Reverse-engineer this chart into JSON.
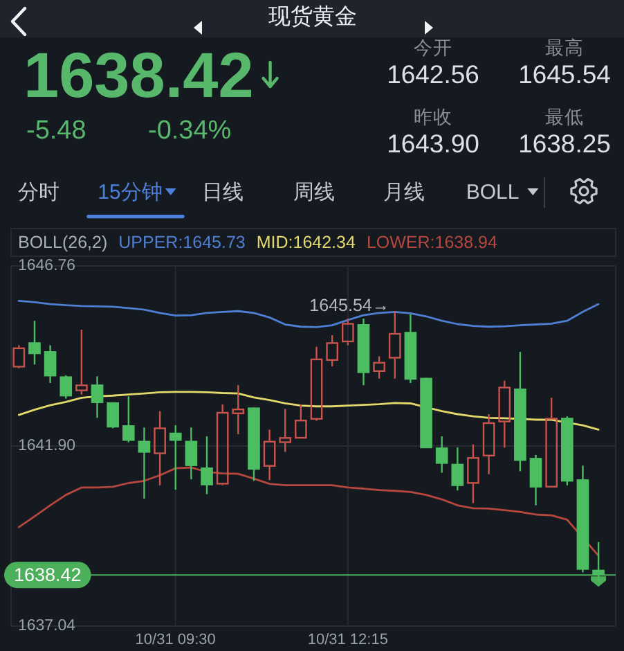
{
  "chart_data": [
    {
      "type": "other",
      "title": "现货黄金",
      "annotations": [
        "1638.42",
        "-5.48",
        "-0.34%",
        "今开",
        "1642.56",
        "最高",
        "1645.54",
        "昨收",
        "1643.90",
        "最低",
        "1638.25",
        "分时",
        "15分钟",
        "日线",
        "周线",
        "月线",
        "BOLL"
      ]
    },
    {
      "type": "candlestick",
      "categories": [
        null,
        null,
        null,
        null,
        null,
        null,
        null,
        null,
        null,
        null,
        "10/31 09:30",
        null,
        null,
        null,
        null,
        null,
        null,
        null,
        null,
        null,
        null,
        "10/31 12:15",
        null,
        null,
        null,
        null,
        null,
        null,
        null,
        null,
        null,
        null,
        null,
        null,
        null,
        null,
        null,
        null
      ],
      "ohlc": [
        [
          1644.02,
          1644.62,
          1644.0,
          1644.56
        ],
        [
          1644.7,
          1645.28,
          1644.1,
          1644.38
        ],
        [
          1644.46,
          1644.62,
          1643.6,
          1643.78
        ],
        [
          1643.78,
          1643.81,
          1643.18,
          1643.24
        ],
        [
          1643.38,
          1645.04,
          1643.29,
          1643.56
        ],
        [
          1643.56,
          1643.78,
          1642.66,
          1643.06
        ],
        [
          1643.08,
          1643.08,
          1642.38,
          1642.4
        ],
        [
          1642.46,
          1643.24,
          1642.0,
          1642.04
        ],
        [
          1642.04,
          1642.4,
          1640.48,
          1641.72
        ],
        [
          1641.68,
          1642.84,
          1640.84,
          1642.4
        ],
        [
          1642.26,
          1642.46,
          1640.72,
          1642.04
        ],
        [
          1642.04,
          1642.4,
          1641.0,
          1641.36
        ],
        [
          1641.32,
          1642.16,
          1640.6,
          1640.84
        ],
        [
          1640.86,
          1643.02,
          1640.84,
          1642.82
        ],
        [
          1642.76,
          1643.54,
          1642.22,
          1642.91
        ],
        [
          1642.94,
          1642.94,
          1640.96,
          1641.26
        ],
        [
          1641.34,
          1642.34,
          1640.98,
          1642.04
        ],
        [
          1641.98,
          1642.9,
          1641.74,
          1642.14
        ],
        [
          1642.1,
          1643.02,
          1642.1,
          1642.61
        ],
        [
          1642.61,
          1644.58,
          1642.58,
          1644.26
        ],
        [
          1644.2,
          1644.89,
          1644.05,
          1644.7
        ],
        [
          1644.7,
          1645.34,
          1644.62,
          1645.22
        ],
        [
          1645.19,
          1645.34,
          1643.54,
          1643.87
        ],
        [
          1643.9,
          1644.32,
          1643.72,
          1644.17
        ],
        [
          1644.26,
          1645.54,
          1643.72,
          1644.95
        ],
        [
          1644.98,
          1645.46,
          1643.6,
          1643.69
        ],
        [
          1643.74,
          1643.74,
          1641.84,
          1641.84
        ],
        [
          1641.86,
          1642.16,
          1641.18,
          1641.42
        ],
        [
          1641.42,
          1641.86,
          1640.7,
          1640.82
        ],
        [
          1640.88,
          1641.94,
          1640.36,
          1641.6
        ],
        [
          1641.62,
          1642.76,
          1641.14,
          1642.54
        ],
        [
          1642.54,
          1643.66,
          1641.86,
          1643.5
        ],
        [
          1643.45,
          1644.44,
          1641.22,
          1641.5
        ],
        [
          1641.58,
          1641.66,
          1640.3,
          1640.78
        ],
        [
          1640.78,
          1643.2,
          1640.78,
          1642.66
        ],
        [
          1642.66,
          1642.7,
          1640.84,
          1640.94
        ],
        [
          1641.0,
          1641.37,
          1638.49,
          1638.56
        ],
        [
          1638.56,
          1639.31,
          1638.25,
          1638.42
        ]
      ],
      "colors": [
        "#c9544c",
        "#4dbd62",
        "#4dbd62",
        "#4dbd62",
        "#c9544c",
        "#4dbd62",
        "#4dbd62",
        "#4dbd62",
        "#4dbd62",
        "#c9544c",
        "#4dbd62",
        "#4dbd62",
        "#4dbd62",
        "#c9544c",
        "#c9544c",
        "#4dbd62",
        "#c9544c",
        "#c9544c",
        "#c9544c",
        "#c9544c",
        "#c9544c",
        "#c9544c",
        "#4dbd62",
        "#c9544c",
        "#c9544c",
        "#4dbd62",
        "#4dbd62",
        "#4dbd62",
        "#4dbd62",
        "#c9544c",
        "#c9544c",
        "#c9544c",
        "#4dbd62",
        "#4dbd62",
        "#c9544c",
        "#4dbd62",
        "#4dbd62",
        "#4dbd62"
      ],
      "series": [
        {
          "name": "UPPER:1645.73",
          "type": "line",
          "color": "#4f7fd3",
          "values": [
            1645.82,
            1645.78,
            1645.73,
            1645.7,
            1645.68,
            1645.67,
            1645.66,
            1645.62,
            1645.58,
            1645.49,
            1645.42,
            1645.43,
            1645.49,
            1645.52,
            1645.54,
            1645.49,
            1645.37,
            1645.18,
            1645.12,
            1645.11,
            1645.16,
            1645.3,
            1645.43,
            1645.49,
            1645.52,
            1645.48,
            1645.4,
            1645.28,
            1645.19,
            1645.14,
            1645.12,
            1645.13,
            1645.16,
            1645.18,
            1645.2,
            1645.28,
            1645.52,
            1645.73
          ]
        },
        {
          "name": "MID:1642.34",
          "type": "line",
          "color": "#e3d96a",
          "values": [
            1642.74,
            1642.88,
            1643.0,
            1643.09,
            1643.2,
            1643.24,
            1643.26,
            1643.29,
            1643.32,
            1643.35,
            1643.36,
            1643.36,
            1643.35,
            1643.33,
            1643.32,
            1643.21,
            1643.14,
            1643.05,
            1642.99,
            1642.97,
            1642.97,
            1642.99,
            1643.01,
            1643.03,
            1643.06,
            1643.05,
            null,
            1642.84,
            1642.76,
            1642.7,
            1642.66,
            1642.65,
            null,
            1642.61,
            1642.61,
            null,
            1642.46,
            1642.34
          ]
        },
        {
          "name": "LOWER:1638.94",
          "type": "line",
          "color": "#b5473f",
          "values": [
            1639.71,
            1640.0,
            1640.3,
            1640.58,
            1640.78,
            1640.78,
            1640.8,
            1640.9,
            1640.96,
            1641.11,
            1641.3,
            1641.32,
            1641.2,
            1641.16,
            1641.15,
            1641.02,
            1640.88,
            1640.84,
            1640.84,
            1640.84,
            1640.84,
            1640.78,
            1640.75,
            1640.71,
            1640.69,
            1640.66,
            1640.58,
            1640.46,
            1640.3,
            1640.22,
            1640.21,
            1640.17,
            1640.12,
            1640.05,
            1640.03,
            1639.91,
            null,
            1638.94
          ]
        }
      ],
      "legend_title": "BOLL(26,2)",
      "legend": "top left",
      "ylim": [
        1637.04,
        1646.76
      ],
      "yticks": [
        1646.76,
        {
          "value": 1641.9,
          "label": "1641.90"
        },
        1637.04
      ],
      "grid": true,
      "ref_lines": [
        {
          "axis": "y",
          "value": 1638.42,
          "label": "1638.42",
          "color": "#4caf5a"
        }
      ],
      "annotations": [
        "1645.54→"
      ]
    }
  ]
}
